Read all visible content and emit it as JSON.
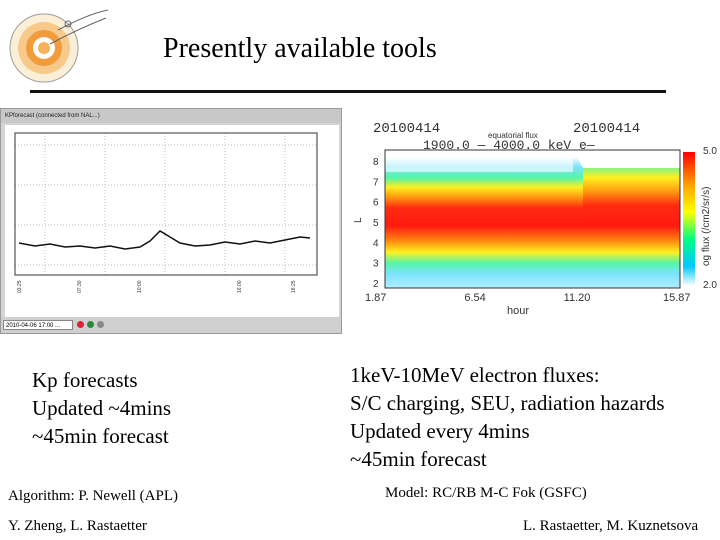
{
  "title": "Presently available tools",
  "kp_window": {
    "titlebar": "KPforecast (connected from NAL...)",
    "status_field": "2010-04-06 17:00 ..."
  },
  "flux_plot": {
    "date_left": "20100414",
    "date_right": "20100414",
    "plot_label": "equatorial flux",
    "energy_range": "1900.0  —  4000.0  keV  e—",
    "ylabel": "L",
    "xlabel": "hour",
    "x_ticks": [
      "1.87",
      "6.54",
      "11.20",
      "15.87"
    ],
    "y_ticks": [
      "2",
      "3",
      "4",
      "5",
      "6",
      "7",
      "8"
    ],
    "colorbar_label": "og flux (/cm2/sr/s)",
    "colorbar_ticks": [
      "5.0",
      "2.0"
    ]
  },
  "kp_text": {
    "lines": [
      "Kp forecasts",
      "Updated ~4mins",
      "~45min forecast"
    ]
  },
  "flux_text": {
    "lines": [
      "1keV-10MeV electron fluxes:",
      "S/C charging, SEU, radiation hazards",
      "Updated every 4mins",
      "~45min forecast"
    ]
  },
  "algorithm": "Algorithm: P. Newell (APL)",
  "model": "Model: RC/RB M-C Fok (GSFC)",
  "credit_left": "Y. Zheng, L. Rastaetter",
  "credit_right": "L. Rastaetter, M. Kuznetsova"
}
